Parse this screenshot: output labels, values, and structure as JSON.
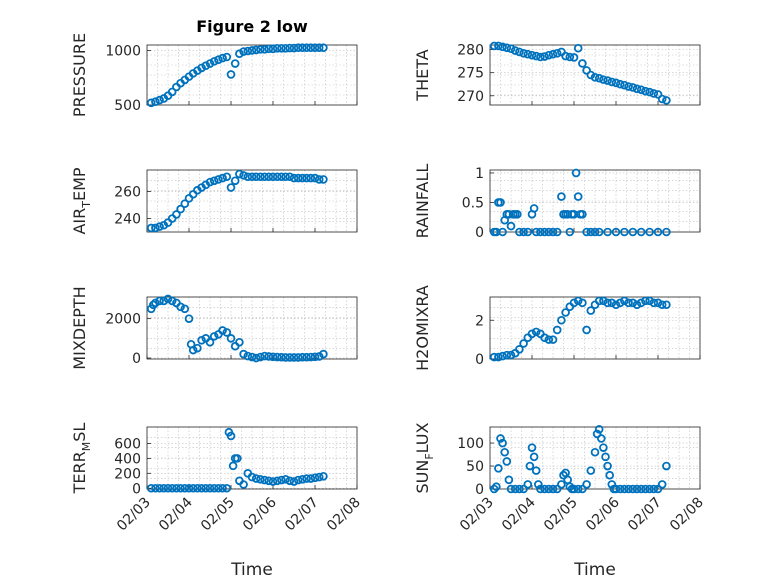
{
  "figure": {
    "title": "Figure 2 low",
    "marker_color": "#0072BD",
    "background": "#ffffff"
  },
  "chart_data": [
    {
      "type": "scatter",
      "id": "pressure",
      "ylabel": "PRESSURE",
      "ylabel_sub": "",
      "xlim": [
        0,
        5
      ],
      "ylim": [
        500,
        1050
      ],
      "yticks": [
        500,
        1000
      ],
      "x": [
        0.1,
        0.2,
        0.3,
        0.4,
        0.5,
        0.6,
        0.7,
        0.8,
        0.9,
        1.0,
        1.1,
        1.2,
        1.3,
        1.4,
        1.5,
        1.6,
        1.7,
        1.8,
        1.9,
        2.0,
        2.1,
        2.2,
        2.3,
        2.4,
        2.5,
        2.6,
        2.7,
        2.8,
        2.9,
        3.0,
        3.1,
        3.2,
        3.3,
        3.4,
        3.5,
        3.6,
        3.7,
        3.8,
        3.9,
        4.0,
        4.1,
        4.2
      ],
      "y": [
        520,
        530,
        545,
        560,
        585,
        620,
        665,
        700,
        730,
        760,
        790,
        815,
        840,
        860,
        880,
        900,
        915,
        930,
        940,
        780,
        880,
        970,
        990,
        995,
        1000,
        1005,
        1010,
        1010,
        1015,
        1015,
        1020,
        1020,
        1020,
        1022,
        1022,
        1025,
        1025,
        1025,
        1025,
        1025,
        1025,
        1025
      ]
    },
    {
      "type": "scatter",
      "id": "theta",
      "ylabel": "THETA",
      "ylabel_sub": "",
      "xlim": [
        0,
        5
      ],
      "ylim": [
        268,
        281
      ],
      "yticks": [
        270,
        275,
        280
      ],
      "x": [
        0.1,
        0.2,
        0.3,
        0.4,
        0.5,
        0.6,
        0.7,
        0.8,
        0.9,
        1.0,
        1.1,
        1.2,
        1.3,
        1.4,
        1.5,
        1.6,
        1.7,
        1.8,
        1.9,
        2.0,
        2.1,
        2.2,
        2.3,
        2.4,
        2.5,
        2.6,
        2.7,
        2.8,
        2.9,
        3.0,
        3.1,
        3.2,
        3.3,
        3.4,
        3.5,
        3.6,
        3.7,
        3.8,
        3.9,
        4.0,
        4.1,
        4.2
      ],
      "y": [
        280.8,
        280.8,
        280.6,
        280.4,
        280.2,
        279.8,
        279.5,
        279.2,
        279.0,
        278.8,
        278.6,
        278.4,
        278.5,
        278.8,
        279.0,
        279.2,
        279.5,
        278.6,
        278.4,
        278.3,
        280.3,
        277.0,
        275.5,
        274.5,
        274.0,
        273.8,
        273.5,
        273.3,
        273.0,
        272.8,
        272.5,
        272.3,
        272.0,
        271.8,
        271.5,
        271.3,
        271.0,
        270.8,
        270.5,
        270.3,
        269.3,
        269.0
      ]
    },
    {
      "type": "scatter",
      "id": "air_temp",
      "ylabel": "AIR",
      "ylabel_sub": "T",
      "ylabel_after": "EMP",
      "xlim": [
        0,
        5
      ],
      "ylim": [
        230,
        276
      ],
      "yticks": [
        240,
        260
      ],
      "x": [
        0.1,
        0.2,
        0.3,
        0.4,
        0.5,
        0.6,
        0.7,
        0.8,
        0.9,
        1.0,
        1.1,
        1.2,
        1.3,
        1.4,
        1.5,
        1.6,
        1.7,
        1.8,
        1.9,
        2.0,
        2.1,
        2.2,
        2.3,
        2.4,
        2.5,
        2.6,
        2.7,
        2.8,
        2.9,
        3.0,
        3.1,
        3.2,
        3.3,
        3.4,
        3.5,
        3.6,
        3.7,
        3.8,
        3.9,
        4.0,
        4.1,
        4.2
      ],
      "y": [
        233,
        233,
        234,
        235,
        237,
        240,
        243,
        247,
        251,
        255,
        258,
        261,
        263,
        265,
        267,
        268,
        269,
        270,
        271,
        263,
        268,
        273,
        272,
        271,
        271,
        271,
        271,
        271,
        271,
        271,
        271,
        271,
        271,
        271,
        270,
        270,
        270,
        270,
        270,
        270,
        269,
        269
      ]
    },
    {
      "type": "scatter",
      "id": "rainfall",
      "ylabel": "RAINFALL",
      "ylabel_sub": "",
      "xlim": [
        0,
        5
      ],
      "ylim": [
        0,
        1.05
      ],
      "yticks": [
        0,
        0.5,
        1
      ],
      "ytick_labels": [
        "0",
        "0.5",
        "1"
      ],
      "x": [
        0.1,
        0.15,
        0.2,
        0.25,
        0.3,
        0.35,
        0.4,
        0.45,
        0.5,
        0.55,
        0.6,
        0.65,
        0.7,
        0.8,
        0.9,
        1.0,
        1.05,
        1.1,
        1.2,
        1.3,
        1.4,
        1.5,
        1.6,
        1.7,
        1.75,
        1.8,
        1.85,
        1.9,
        1.95,
        2.0,
        2.05,
        2.1,
        2.15,
        2.2,
        2.3,
        2.4,
        2.5,
        2.6,
        2.8,
        3.0,
        3.2,
        3.4,
        3.6,
        3.8,
        4.0,
        4.2
      ],
      "y": [
        0,
        0,
        0.5,
        0.5,
        0,
        0.2,
        0.3,
        0.3,
        0.1,
        0.3,
        0.3,
        0.3,
        0,
        0,
        0,
        0.3,
        0.4,
        0,
        0,
        0,
        0,
        0,
        0,
        0.6,
        0.3,
        0.3,
        0.3,
        0,
        0.3,
        0.3,
        1.0,
        0.6,
        0.3,
        0.3,
        0,
        0,
        0,
        0,
        0,
        0,
        0,
        0,
        0,
        0,
        0,
        0
      ]
    },
    {
      "type": "scatter",
      "id": "mixdepth",
      "ylabel": "MIXDEPTH",
      "ylabel_sub": "",
      "xlim": [
        0,
        5
      ],
      "ylim": [
        -50,
        3100
      ],
      "yticks": [
        0,
        2000
      ],
      "x": [
        0.1,
        0.15,
        0.2,
        0.3,
        0.4,
        0.5,
        0.6,
        0.7,
        0.8,
        0.9,
        1.0,
        1.05,
        1.1,
        1.2,
        1.3,
        1.4,
        1.5,
        1.6,
        1.7,
        1.8,
        1.9,
        2.0,
        2.1,
        2.2,
        2.3,
        2.4,
        2.5,
        2.6,
        2.7,
        2.8,
        2.9,
        3.0,
        3.1,
        3.2,
        3.3,
        3.4,
        3.5,
        3.6,
        3.7,
        3.8,
        3.9,
        4.0,
        4.1,
        4.2
      ],
      "y": [
        2500,
        2700,
        2800,
        2900,
        2900,
        3000,
        2900,
        2800,
        2600,
        2500,
        2000,
        700,
        400,
        500,
        900,
        1000,
        800,
        1100,
        1200,
        1400,
        1300,
        1000,
        600,
        800,
        200,
        100,
        50,
        0,
        50,
        100,
        80,
        60,
        50,
        40,
        30,
        30,
        30,
        30,
        40,
        40,
        50,
        60,
        80,
        200
      ]
    },
    {
      "type": "scatter",
      "id": "h2omixra",
      "ylabel": "H2OMIXRA",
      "ylabel_sub": "",
      "xlim": [
        0,
        5
      ],
      "ylim": [
        0,
        3.2
      ],
      "yticks": [
        0,
        2
      ],
      "x": [
        0.1,
        0.2,
        0.3,
        0.4,
        0.5,
        0.6,
        0.7,
        0.8,
        0.9,
        1.0,
        1.1,
        1.2,
        1.3,
        1.4,
        1.5,
        1.6,
        1.7,
        1.8,
        1.9,
        2.0,
        2.1,
        2.2,
        2.3,
        2.4,
        2.5,
        2.6,
        2.7,
        2.8,
        2.9,
        3.0,
        3.1,
        3.2,
        3.3,
        3.4,
        3.5,
        3.6,
        3.7,
        3.8,
        3.9,
        4.0,
        4.1,
        4.2
      ],
      "y": [
        0.1,
        0.1,
        0.15,
        0.2,
        0.2,
        0.3,
        0.5,
        0.8,
        1.1,
        1.3,
        1.4,
        1.3,
        1.1,
        1.0,
        1.0,
        1.5,
        2.0,
        2.4,
        2.7,
        2.9,
        3.0,
        2.9,
        1.5,
        2.5,
        2.8,
        3.0,
        3.0,
        2.9,
        2.9,
        2.8,
        2.9,
        3.0,
        2.9,
        2.9,
        2.8,
        2.9,
        3.0,
        3.0,
        2.9,
        2.9,
        2.8,
        2.8
      ]
    },
    {
      "type": "scatter",
      "id": "terr_msl",
      "ylabel": "TERR",
      "ylabel_sub": "M",
      "ylabel_after": "SL",
      "xlim": [
        0,
        5
      ],
      "ylim": [
        -10,
        820
      ],
      "yticks": [
        0,
        200,
        400,
        600
      ],
      "x": [
        0.1,
        0.2,
        0.3,
        0.4,
        0.5,
        0.6,
        0.7,
        0.8,
        0.9,
        1.0,
        1.1,
        1.2,
        1.3,
        1.4,
        1.5,
        1.6,
        1.7,
        1.8,
        1.9,
        1.95,
        2.0,
        2.05,
        2.1,
        2.15,
        2.2,
        2.3,
        2.4,
        2.5,
        2.6,
        2.7,
        2.8,
        2.9,
        3.0,
        3.1,
        3.2,
        3.3,
        3.4,
        3.5,
        3.6,
        3.7,
        3.8,
        3.9,
        4.0,
        4.1,
        4.2
      ],
      "y": [
        0,
        0,
        0,
        0,
        0,
        0,
        0,
        0,
        0,
        0,
        0,
        0,
        0,
        0,
        0,
        0,
        0,
        0,
        0,
        750,
        700,
        300,
        400,
        400,
        100,
        50,
        200,
        150,
        130,
        120,
        110,
        100,
        90,
        100,
        110,
        120,
        100,
        90,
        110,
        120,
        130,
        130,
        140,
        150,
        160
      ]
    },
    {
      "type": "scatter",
      "id": "sun_flux",
      "ylabel": "SUN",
      "ylabel_sub": "F",
      "ylabel_after": "LUX",
      "xlim": [
        0,
        5
      ],
      "ylim": [
        0,
        135
      ],
      "yticks": [
        0,
        50,
        100
      ],
      "x": [
        0.1,
        0.15,
        0.2,
        0.25,
        0.3,
        0.35,
        0.4,
        0.45,
        0.5,
        0.6,
        0.7,
        0.8,
        0.9,
        0.95,
        1.0,
        1.05,
        1.1,
        1.15,
        1.2,
        1.3,
        1.4,
        1.5,
        1.6,
        1.7,
        1.75,
        1.8,
        1.85,
        1.9,
        1.95,
        2.0,
        2.1,
        2.2,
        2.3,
        2.4,
        2.5,
        2.55,
        2.6,
        2.65,
        2.7,
        2.75,
        2.8,
        2.85,
        2.9,
        2.95,
        3.0,
        3.1,
        3.2,
        3.3,
        3.4,
        3.5,
        3.6,
        3.7,
        3.8,
        3.9,
        4.0,
        4.1,
        4.2
      ],
      "y": [
        0,
        5,
        45,
        110,
        100,
        80,
        60,
        20,
        0,
        0,
        0,
        0,
        10,
        50,
        90,
        70,
        40,
        10,
        0,
        0,
        0,
        0,
        0,
        10,
        30,
        35,
        20,
        5,
        0,
        0,
        0,
        0,
        10,
        40,
        80,
        120,
        130,
        110,
        90,
        70,
        50,
        30,
        10,
        0,
        0,
        0,
        0,
        0,
        0,
        0,
        0,
        0,
        0,
        0,
        0,
        10,
        50
      ]
    }
  ],
  "shared_x": {
    "xtick_values": [
      0,
      1,
      2,
      3,
      4,
      5
    ],
    "xtick_labels": [
      "02/03",
      "02/04",
      "02/05",
      "02/06",
      "02/07",
      "02/08"
    ],
    "xlabel": "Time"
  }
}
